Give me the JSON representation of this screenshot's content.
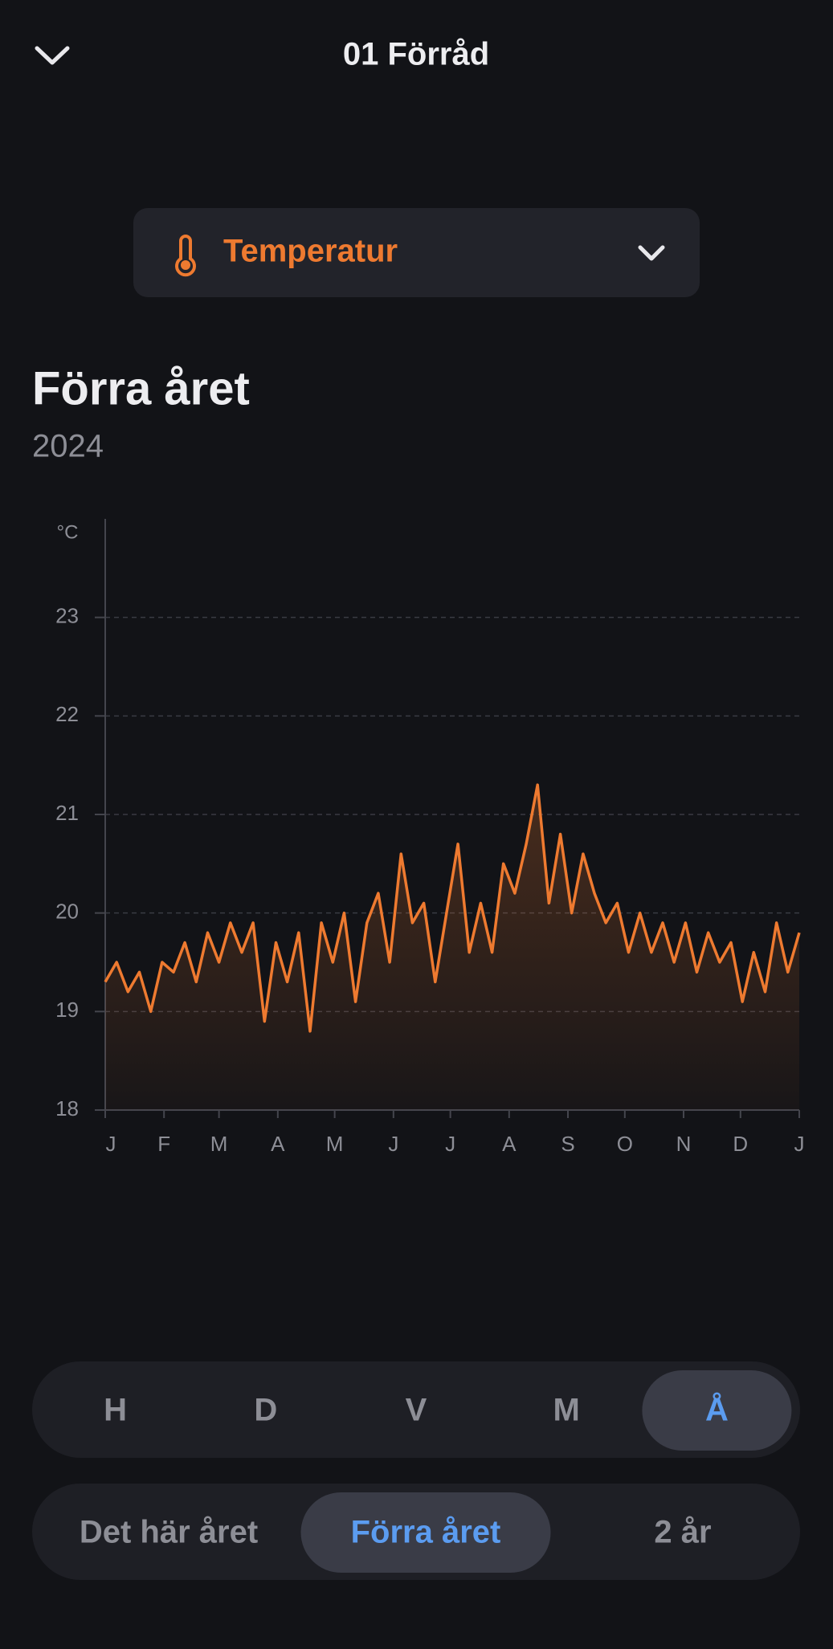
{
  "header": {
    "title": "01 Förråd"
  },
  "metric_selector": {
    "label": "Temperatur"
  },
  "period": {
    "title": "Förra året",
    "subtitle": "2024"
  },
  "chart_data": {
    "type": "line",
    "unit_label": "°C",
    "color": "#ee7a30",
    "grid": true,
    "x": [
      0,
      6,
      12,
      18,
      24,
      30,
      36,
      42,
      48,
      54,
      60,
      66,
      72,
      78,
      84,
      90,
      96,
      102,
      108,
      114,
      120,
      126,
      132,
      138,
      144,
      150,
      156,
      162,
      168,
      174,
      180,
      186,
      192,
      198,
      204,
      210,
      216,
      222,
      228,
      234,
      240,
      246,
      252,
      258,
      264,
      270,
      276,
      282,
      288,
      294,
      300,
      306,
      312,
      318,
      324,
      330,
      336,
      342,
      348,
      354,
      360,
      366
    ],
    "values": [
      19.3,
      19.5,
      19.2,
      19.4,
      19.0,
      19.5,
      19.4,
      19.7,
      19.3,
      19.8,
      19.5,
      19.9,
      19.6,
      19.9,
      18.9,
      19.7,
      19.3,
      19.8,
      18.8,
      19.9,
      19.5,
      20.0,
      19.1,
      19.9,
      20.2,
      19.5,
      20.6,
      19.9,
      20.1,
      19.3,
      20.0,
      20.7,
      19.6,
      20.1,
      19.6,
      20.5,
      20.2,
      20.7,
      21.3,
      20.1,
      20.8,
      20.0,
      20.6,
      20.2,
      19.9,
      20.1,
      19.6,
      20.0,
      19.6,
      19.9,
      19.5,
      19.9,
      19.4,
      19.8,
      19.5,
      19.7,
      19.1,
      19.6,
      19.2,
      19.9,
      19.4,
      19.8
    ],
    "xlim": [
      0,
      366
    ],
    "xticks": [
      {
        "value": 0,
        "label": "J"
      },
      {
        "value": 31,
        "label": "F"
      },
      {
        "value": 60,
        "label": "M"
      },
      {
        "value": 91,
        "label": "A"
      },
      {
        "value": 121,
        "label": "M"
      },
      {
        "value": 152,
        "label": "J"
      },
      {
        "value": 182,
        "label": "J"
      },
      {
        "value": 213,
        "label": "A"
      },
      {
        "value": 244,
        "label": "S"
      },
      {
        "value": 274,
        "label": "O"
      },
      {
        "value": 305,
        "label": "N"
      },
      {
        "value": 335,
        "label": "D"
      },
      {
        "value": 366,
        "label": "J"
      }
    ],
    "ylim": [
      18,
      24
    ],
    "yticks": [
      18,
      19,
      20,
      21,
      22,
      23
    ]
  },
  "resolution_tabs": {
    "items": [
      "H",
      "D",
      "V",
      "M",
      "Å"
    ],
    "selected": 4
  },
  "range_tabs": {
    "items": [
      "Det här året",
      "Förra året",
      "2 år"
    ],
    "selected": 1
  }
}
